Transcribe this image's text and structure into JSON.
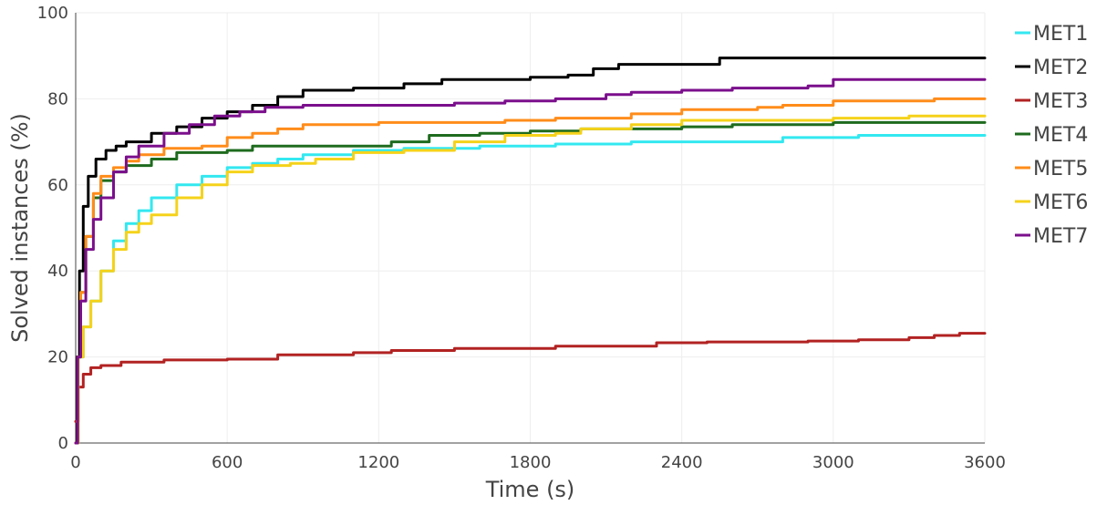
{
  "chart_data": {
    "type": "line",
    "xlabel": "Time (s)",
    "ylabel": "Solved instances (%)",
    "xlim": [
      0,
      3600
    ],
    "ylim": [
      0,
      100
    ],
    "x_ticks": [
      0,
      600,
      1200,
      1800,
      2400,
      3000,
      3600
    ],
    "y_ticks": [
      0,
      20,
      40,
      60,
      80,
      100
    ],
    "grid": true,
    "legend_position": "right",
    "series": [
      {
        "name": "MET1",
        "color": "#33e8f0",
        "points": [
          [
            0,
            0
          ],
          [
            10,
            20
          ],
          [
            30,
            27
          ],
          [
            60,
            33
          ],
          [
            100,
            40
          ],
          [
            150,
            47
          ],
          [
            200,
            51
          ],
          [
            250,
            54
          ],
          [
            300,
            57
          ],
          [
            400,
            60
          ],
          [
            500,
            62
          ],
          [
            600,
            64
          ],
          [
            700,
            65
          ],
          [
            800,
            66
          ],
          [
            900,
            67
          ],
          [
            1100,
            68
          ],
          [
            1300,
            68.5
          ],
          [
            1600,
            69
          ],
          [
            1900,
            69.5
          ],
          [
            2200,
            70
          ],
          [
            2600,
            70
          ],
          [
            2800,
            71
          ],
          [
            3000,
            71
          ],
          [
            3100,
            71.5
          ],
          [
            3600,
            71.5
          ]
        ]
      },
      {
        "name": "MET2",
        "color": "#000000",
        "points": [
          [
            0,
            0
          ],
          [
            5,
            20
          ],
          [
            15,
            40
          ],
          [
            30,
            55
          ],
          [
            50,
            62
          ],
          [
            80,
            66
          ],
          [
            120,
            68
          ],
          [
            160,
            69
          ],
          [
            200,
            70
          ],
          [
            300,
            72
          ],
          [
            400,
            73.5
          ],
          [
            500,
            75.5
          ],
          [
            600,
            77
          ],
          [
            700,
            78.5
          ],
          [
            800,
            80.5
          ],
          [
            900,
            82
          ],
          [
            1100,
            82.5
          ],
          [
            1300,
            83.5
          ],
          [
            1450,
            84.5
          ],
          [
            1700,
            84.5
          ],
          [
            1800,
            85
          ],
          [
            1950,
            85.5
          ],
          [
            2050,
            87
          ],
          [
            2150,
            88
          ],
          [
            2400,
            88
          ],
          [
            2550,
            89.5
          ],
          [
            3600,
            89.5
          ]
        ]
      },
      {
        "name": "MET3",
        "color": "#b22222",
        "points": [
          [
            0,
            5
          ],
          [
            10,
            13
          ],
          [
            30,
            16
          ],
          [
            60,
            17.5
          ],
          [
            100,
            18
          ],
          [
            180,
            18.8
          ],
          [
            350,
            19.3
          ],
          [
            600,
            19.5
          ],
          [
            800,
            20.5
          ],
          [
            1100,
            21
          ],
          [
            1250,
            21.5
          ],
          [
            1500,
            22
          ],
          [
            1900,
            22.5
          ],
          [
            2300,
            23.3
          ],
          [
            2500,
            23.5
          ],
          [
            2900,
            23.7
          ],
          [
            3100,
            24
          ],
          [
            3300,
            24.5
          ],
          [
            3400,
            25
          ],
          [
            3500,
            25.5
          ],
          [
            3600,
            25.5
          ]
        ]
      },
      {
        "name": "MET4",
        "color": "#1e6b1e",
        "points": [
          [
            0,
            0
          ],
          [
            8,
            20
          ],
          [
            20,
            35
          ],
          [
            40,
            48
          ],
          [
            70,
            57
          ],
          [
            100,
            61
          ],
          [
            150,
            63
          ],
          [
            200,
            64.5
          ],
          [
            300,
            66
          ],
          [
            400,
            67.5
          ],
          [
            600,
            68
          ],
          [
            700,
            69
          ],
          [
            900,
            69
          ],
          [
            1100,
            69
          ],
          [
            1250,
            70
          ],
          [
            1400,
            71.5
          ],
          [
            1600,
            72
          ],
          [
            1800,
            72.5
          ],
          [
            2000,
            73
          ],
          [
            2200,
            73
          ],
          [
            2400,
            73.5
          ],
          [
            2600,
            74
          ],
          [
            2900,
            74
          ],
          [
            3000,
            74.5
          ],
          [
            3600,
            74.5
          ]
        ]
      },
      {
        "name": "MET5",
        "color": "#ff8c1a",
        "points": [
          [
            0,
            0
          ],
          [
            8,
            20
          ],
          [
            20,
            35
          ],
          [
            40,
            48
          ],
          [
            70,
            58
          ],
          [
            100,
            62
          ],
          [
            150,
            64
          ],
          [
            200,
            65.5
          ],
          [
            250,
            67
          ],
          [
            350,
            68.5
          ],
          [
            500,
            69
          ],
          [
            600,
            71
          ],
          [
            700,
            72
          ],
          [
            800,
            73
          ],
          [
            900,
            74
          ],
          [
            1200,
            74.5
          ],
          [
            1400,
            74.5
          ],
          [
            1700,
            75
          ],
          [
            1900,
            75.5
          ],
          [
            2100,
            75.5
          ],
          [
            2200,
            76.5
          ],
          [
            2400,
            77.5
          ],
          [
            2700,
            78
          ],
          [
            2800,
            78.5
          ],
          [
            3000,
            79.5
          ],
          [
            3300,
            79.5
          ],
          [
            3400,
            80
          ],
          [
            3600,
            80
          ]
        ]
      },
      {
        "name": "MET6",
        "color": "#f5d21a",
        "points": [
          [
            0,
            0
          ],
          [
            10,
            20
          ],
          [
            30,
            27
          ],
          [
            60,
            33
          ],
          [
            100,
            40
          ],
          [
            150,
            45
          ],
          [
            200,
            49
          ],
          [
            250,
            51
          ],
          [
            300,
            53
          ],
          [
            400,
            57
          ],
          [
            500,
            60
          ],
          [
            600,
            63
          ],
          [
            700,
            64.5
          ],
          [
            850,
            65
          ],
          [
            950,
            66
          ],
          [
            1100,
            67.5
          ],
          [
            1300,
            68
          ],
          [
            1500,
            70
          ],
          [
            1700,
            71.5
          ],
          [
            1900,
            72
          ],
          [
            2000,
            73
          ],
          [
            2200,
            74
          ],
          [
            2400,
            75
          ],
          [
            2700,
            75
          ],
          [
            3000,
            75.5
          ],
          [
            3300,
            76
          ],
          [
            3600,
            76
          ]
        ]
      },
      {
        "name": "MET7",
        "color": "#7b0f8c",
        "points": [
          [
            0,
            0
          ],
          [
            8,
            20
          ],
          [
            20,
            33
          ],
          [
            40,
            45
          ],
          [
            70,
            52
          ],
          [
            100,
            57
          ],
          [
            150,
            63
          ],
          [
            200,
            66.5
          ],
          [
            250,
            69
          ],
          [
            350,
            72
          ],
          [
            450,
            74
          ],
          [
            550,
            76
          ],
          [
            650,
            77
          ],
          [
            750,
            78
          ],
          [
            900,
            78.5
          ],
          [
            1200,
            78.5
          ],
          [
            1500,
            79
          ],
          [
            1700,
            79.5
          ],
          [
            1900,
            80
          ],
          [
            2100,
            81
          ],
          [
            2200,
            81.5
          ],
          [
            2400,
            82
          ],
          [
            2600,
            82.5
          ],
          [
            2900,
            83
          ],
          [
            3000,
            84.5
          ],
          [
            3600,
            84.5
          ]
        ]
      }
    ]
  }
}
